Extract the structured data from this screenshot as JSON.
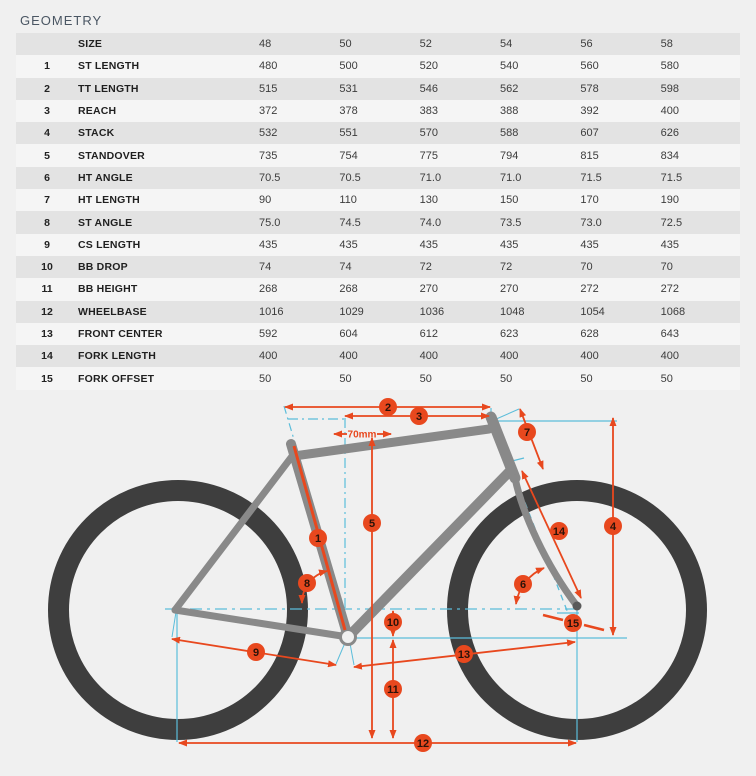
{
  "page": {
    "title": "GEOMETRY"
  },
  "table": {
    "size_label": "SIZE",
    "sizes": [
      "48",
      "50",
      "52",
      "54",
      "56",
      "58"
    ],
    "rows": [
      {
        "num": "1",
        "label": "ST LENGTH",
        "values": [
          "480",
          "500",
          "520",
          "540",
          "560",
          "580"
        ]
      },
      {
        "num": "2",
        "label": "TT LENGTH",
        "values": [
          "515",
          "531",
          "546",
          "562",
          "578",
          "598"
        ]
      },
      {
        "num": "3",
        "label": "REACH",
        "values": [
          "372",
          "378",
          "383",
          "388",
          "392",
          "400"
        ]
      },
      {
        "num": "4",
        "label": "STACK",
        "values": [
          "532",
          "551",
          "570",
          "588",
          "607",
          "626"
        ]
      },
      {
        "num": "5",
        "label": "STANDOVER",
        "values": [
          "735",
          "754",
          "775",
          "794",
          "815",
          "834"
        ]
      },
      {
        "num": "6",
        "label": "HT ANGLE",
        "values": [
          "70.5",
          "70.5",
          "71.0",
          "71.0",
          "71.5",
          "71.5"
        ]
      },
      {
        "num": "7",
        "label": "HT LENGTH",
        "values": [
          "90",
          "110",
          "130",
          "150",
          "170",
          "190"
        ]
      },
      {
        "num": "8",
        "label": "ST ANGLE",
        "values": [
          "75.0",
          "74.5",
          "74.0",
          "73.5",
          "73.0",
          "72.5"
        ]
      },
      {
        "num": "9",
        "label": "CS LENGTH",
        "values": [
          "435",
          "435",
          "435",
          "435",
          "435",
          "435"
        ]
      },
      {
        "num": "10",
        "label": "BB DROP",
        "values": [
          "74",
          "74",
          "72",
          "72",
          "70",
          "70"
        ]
      },
      {
        "num": "11",
        "label": "BB HEIGHT",
        "values": [
          "268",
          "268",
          "270",
          "270",
          "272",
          "272"
        ]
      },
      {
        "num": "12",
        "label": "WHEELBASE",
        "values": [
          "1016",
          "1029",
          "1036",
          "1048",
          "1054",
          "1068"
        ]
      },
      {
        "num": "13",
        "label": "FRONT CENTER",
        "values": [
          "592",
          "604",
          "612",
          "623",
          "628",
          "643"
        ]
      },
      {
        "num": "14",
        "label": "FORK LENGTH",
        "values": [
          "400",
          "400",
          "400",
          "400",
          "400",
          "400"
        ]
      },
      {
        "num": "15",
        "label": "FORK OFFSET",
        "values": [
          "50",
          "50",
          "50",
          "50",
          "50",
          "50"
        ]
      }
    ]
  },
  "diagram": {
    "offset_label": "70mm",
    "markers": [
      "1",
      "2",
      "3",
      "4",
      "5",
      "6",
      "7",
      "8",
      "9",
      "10",
      "11",
      "12",
      "13",
      "14",
      "15"
    ],
    "colors": {
      "dimension": "#e8481e",
      "construction": "#5bbdda",
      "frame": "#898989",
      "wheel": "#3e3e3e",
      "background": "#f0f0f0"
    }
  }
}
